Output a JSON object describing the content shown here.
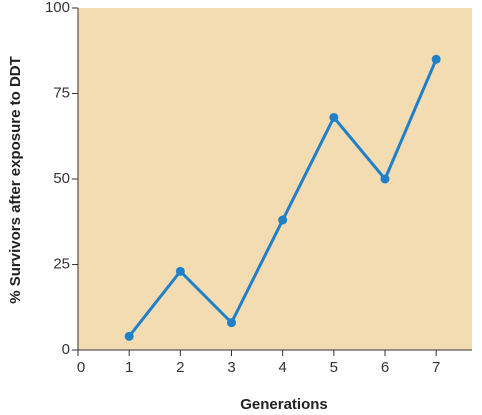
{
  "chart_data": {
    "type": "line",
    "x_label": "Generations",
    "y_label": "% Survivors after exposure to DDT",
    "x": [
      1,
      2,
      3,
      4,
      5,
      6,
      7
    ],
    "series": [
      {
        "color": "#1f7fc8",
        "values": [
          4,
          23,
          8,
          38,
          68,
          50,
          85
        ]
      }
    ],
    "xlim": [
      0,
      7.7
    ],
    "xticks": [
      0,
      1,
      2,
      3,
      4,
      5,
      6,
      7
    ],
    "ylim": [
      0,
      100
    ],
    "yticks": [
      0,
      25,
      50,
      75,
      100
    ],
    "background": "#f4dcb2"
  }
}
